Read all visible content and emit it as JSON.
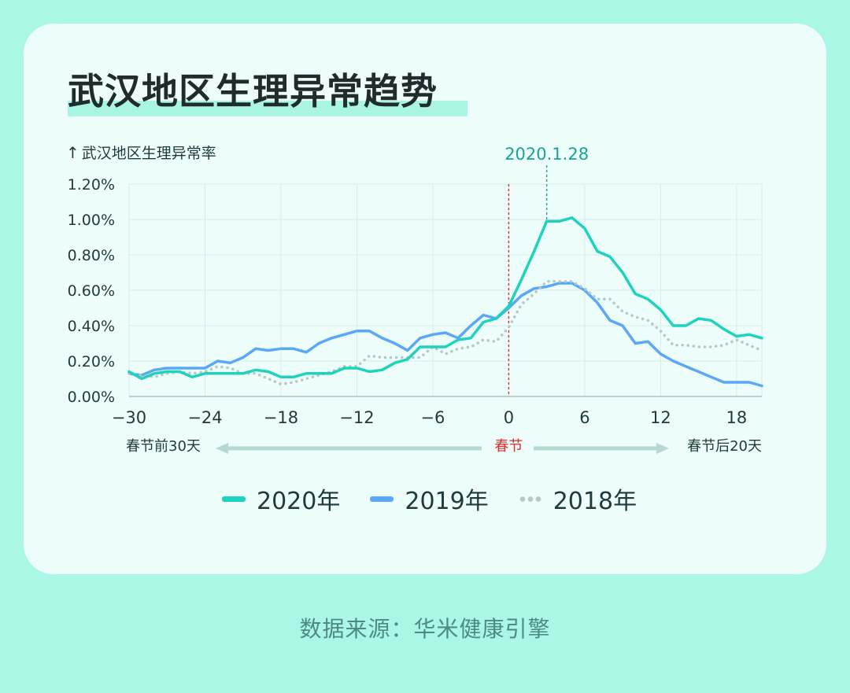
{
  "title": "武汉地区生理异常趋势",
  "source": "数据来源：华米健康引擎",
  "chart_data": {
    "type": "line",
    "ylabel": "武汉地区生理异常率",
    "ylim": [
      0,
      1.2
    ],
    "xlim": [
      -30,
      20
    ],
    "yticks": [
      "0.00%",
      "0.20%",
      "0.40%",
      "0.60%",
      "0.80%",
      "1.00%",
      "1.20%"
    ],
    "xticks": [
      "−30",
      "−24",
      "−18",
      "−12",
      "−6",
      "0",
      "6",
      "12",
      "18"
    ],
    "xtick_values": [
      -30,
      -24,
      -18,
      -12,
      -6,
      0,
      6,
      12,
      18
    ],
    "grid": true,
    "annotations": {
      "left": "春节前30天",
      "center": "春节",
      "right": "春节后20天",
      "peak_label": "2020.1.28"
    },
    "series": [
      {
        "name": "2020年",
        "color": "#1ed2bd",
        "style": "solid",
        "x": [
          -30,
          -29,
          -28,
          -27,
          -26,
          -25,
          -24,
          -23,
          -22,
          -21,
          -20,
          -19,
          -18,
          -17,
          -16,
          -15,
          -14,
          -13,
          -12,
          -11,
          -10,
          -9,
          -8,
          -7,
          -6,
          -5,
          -4,
          -3,
          -2,
          -1,
          0,
          1,
          2,
          3,
          4,
          5,
          6,
          7,
          8,
          9,
          10,
          11,
          12,
          13,
          14,
          15,
          16,
          17,
          18,
          19,
          20
        ],
        "values": [
          0.14,
          0.1,
          0.13,
          0.14,
          0.14,
          0.11,
          0.13,
          0.13,
          0.13,
          0.13,
          0.15,
          0.14,
          0.11,
          0.11,
          0.13,
          0.13,
          0.13,
          0.16,
          0.16,
          0.14,
          0.15,
          0.19,
          0.21,
          0.28,
          0.28,
          0.28,
          0.32,
          0.33,
          0.42,
          0.44,
          0.51,
          0.66,
          0.82,
          0.99,
          0.99,
          1.01,
          0.95,
          0.82,
          0.79,
          0.7,
          0.58,
          0.55,
          0.49,
          0.4,
          0.4,
          0.44,
          0.43,
          0.38,
          0.34,
          0.35,
          0.33
        ]
      },
      {
        "name": "2019年",
        "color": "#5aa8f5",
        "style": "solid",
        "x": [
          -30,
          -29,
          -28,
          -27,
          -26,
          -25,
          -24,
          -23,
          -22,
          -21,
          -20,
          -19,
          -18,
          -17,
          -16,
          -15,
          -14,
          -13,
          -12,
          -11,
          -10,
          -9,
          -8,
          -7,
          -6,
          -5,
          -4,
          -3,
          -2,
          -1,
          0,
          1,
          2,
          3,
          4,
          5,
          6,
          7,
          8,
          9,
          10,
          11,
          12,
          13,
          14,
          15,
          16,
          17,
          18,
          19,
          20
        ],
        "values": [
          0.13,
          0.12,
          0.15,
          0.16,
          0.16,
          0.16,
          0.16,
          0.2,
          0.19,
          0.22,
          0.27,
          0.26,
          0.27,
          0.27,
          0.25,
          0.3,
          0.33,
          0.35,
          0.37,
          0.37,
          0.33,
          0.3,
          0.26,
          0.33,
          0.35,
          0.36,
          0.33,
          0.4,
          0.46,
          0.44,
          0.5,
          0.57,
          0.61,
          0.62,
          0.64,
          0.64,
          0.6,
          0.53,
          0.43,
          0.4,
          0.3,
          0.31,
          0.24,
          0.2,
          0.17,
          0.14,
          0.11,
          0.08,
          0.08,
          0.08,
          0.06
        ]
      },
      {
        "name": "2018年",
        "color": "#b5c7c6",
        "style": "dotted",
        "x": [
          -30,
          -29,
          -28,
          -27,
          -26,
          -25,
          -24,
          -23,
          -22,
          -21,
          -20,
          -19,
          -18,
          -17,
          -16,
          -15,
          -14,
          -13,
          -12,
          -11,
          -10,
          -9,
          -8,
          -7,
          -6,
          -5,
          -4,
          -3,
          -2,
          -1,
          0,
          1,
          2,
          3,
          4,
          5,
          6,
          7,
          8,
          9,
          10,
          11,
          12,
          13,
          14,
          15,
          16,
          17,
          18,
          19,
          20
        ],
        "values": [
          0.13,
          0.12,
          0.11,
          0.13,
          0.14,
          0.13,
          0.14,
          0.17,
          0.16,
          0.13,
          0.13,
          0.1,
          0.07,
          0.08,
          0.1,
          0.12,
          0.14,
          0.17,
          0.17,
          0.23,
          0.22,
          0.22,
          0.22,
          0.22,
          0.28,
          0.24,
          0.27,
          0.28,
          0.32,
          0.31,
          0.39,
          0.52,
          0.58,
          0.65,
          0.65,
          0.65,
          0.61,
          0.55,
          0.55,
          0.48,
          0.45,
          0.43,
          0.37,
          0.29,
          0.29,
          0.28,
          0.28,
          0.29,
          0.32,
          0.29,
          0.26
        ]
      }
    ]
  }
}
